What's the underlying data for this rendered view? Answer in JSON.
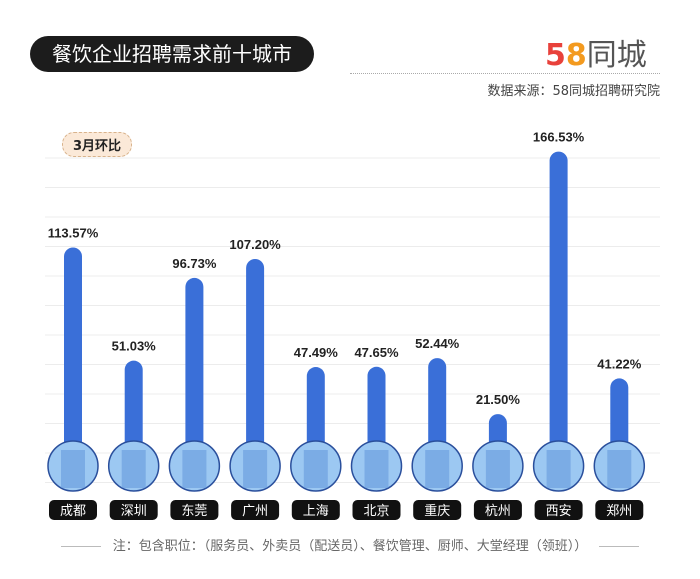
{
  "header": {
    "title": "餐饮企业招聘需求前十城市",
    "logo": "58同城",
    "source": "数据来源：58同城招聘研究院"
  },
  "chart_data": {
    "type": "bar",
    "legend_badge": "3月环比",
    "categories": [
      "成都",
      "深圳",
      "东莞",
      "广州",
      "上海",
      "北京",
      "重庆",
      "杭州",
      "西安",
      "郑州"
    ],
    "values": [
      113.57,
      51.03,
      96.73,
      107.2,
      47.49,
      47.65,
      52.44,
      21.5,
      166.53,
      41.22
    ],
    "labels": [
      "113.57%",
      "51.03%",
      "96.73%",
      "107.20%",
      "47.49%",
      "47.65%",
      "52.44%",
      "21.50%",
      "166.53%",
      "41.22%"
    ],
    "unit": "%",
    "grid": true,
    "colors": {
      "bar": "#3a6fd8",
      "circle": "#9cc8f2",
      "circle_border": "#2a4f9c",
      "label_bg": "#111111"
    }
  },
  "footer": {
    "note": "注：包含职位：（服务员、外卖员（配送员）、餐饮管理、厨师、大堂经理（领班））"
  }
}
